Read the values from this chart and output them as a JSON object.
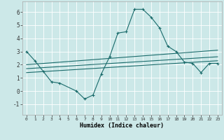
{
  "title": "",
  "xlabel": "Humidex (Indice chaleur)",
  "xlim": [
    -0.5,
    23.5
  ],
  "ylim": [
    -1.8,
    6.8
  ],
  "xticks": [
    0,
    1,
    2,
    3,
    4,
    5,
    6,
    7,
    8,
    9,
    10,
    11,
    12,
    13,
    14,
    15,
    16,
    17,
    18,
    19,
    20,
    21,
    22,
    23
  ],
  "yticks": [
    -1,
    0,
    1,
    2,
    3,
    4,
    5,
    6
  ],
  "background_color": "#cce8e8",
  "grid_color": "#ffffff",
  "line_color": "#1a6b6b",
  "line1_x": [
    0,
    1,
    2,
    3,
    4,
    6,
    7,
    8,
    9,
    10,
    11,
    12,
    13,
    14,
    15,
    16,
    17,
    18,
    19,
    20,
    21,
    22,
    23
  ],
  "line1_y": [
    3.0,
    2.3,
    1.5,
    0.7,
    0.6,
    0.0,
    -0.6,
    -0.3,
    1.3,
    2.6,
    4.4,
    4.5,
    6.2,
    6.2,
    5.6,
    4.8,
    3.4,
    3.0,
    2.2,
    2.1,
    1.4,
    2.1,
    2.1
  ],
  "line2_x": [
    0,
    23
  ],
  "line2_y": [
    2.0,
    3.1
  ],
  "line3_x": [
    0,
    23
  ],
  "line3_y": [
    1.7,
    2.6
  ],
  "line4_x": [
    0,
    23
  ],
  "line4_y": [
    1.4,
    2.3
  ]
}
